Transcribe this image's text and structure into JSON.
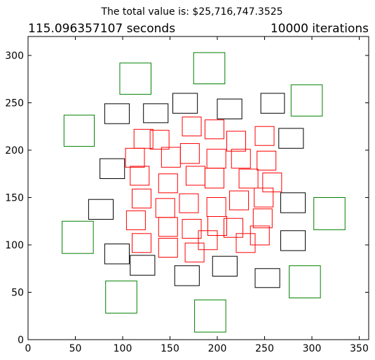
{
  "chart_data": {
    "type": "scatter",
    "title": "The total value is: $25,716,747.3525",
    "left_annotation": "115.096357107 seconds",
    "right_annotation": "10000 iterations",
    "xlabel": "",
    "ylabel": "",
    "xlim": [
      0,
      360
    ],
    "ylim": [
      0,
      320
    ],
    "x_ticks": [
      0,
      50,
      100,
      150,
      200,
      250,
      300,
      350
    ],
    "y_ticks": [
      0,
      50,
      100,
      150,
      200,
      250,
      300
    ],
    "grid": false,
    "legend": "none",
    "colors": {
      "green": "#008000",
      "black": "#000000",
      "red": "#ff0000"
    },
    "series": [
      {
        "color": "green",
        "rects": [
          {
            "x": 97,
            "y": 259,
            "w": 33,
            "h": 33
          },
          {
            "x": 175,
            "y": 270,
            "w": 33,
            "h": 33
          },
          {
            "x": 278,
            "y": 236,
            "w": 33,
            "h": 33
          },
          {
            "x": 38,
            "y": 204,
            "w": 32,
            "h": 33
          },
          {
            "x": 302,
            "y": 116,
            "w": 33,
            "h": 34
          },
          {
            "x": 36,
            "y": 91,
            "w": 33,
            "h": 34
          },
          {
            "x": 82,
            "y": 28,
            "w": 33,
            "h": 34
          },
          {
            "x": 276,
            "y": 44,
            "w": 33,
            "h": 34
          },
          {
            "x": 176,
            "y": 8,
            "w": 33,
            "h": 34
          }
        ]
      },
      {
        "color": "black",
        "rects": [
          {
            "x": 81,
            "y": 228,
            "w": 26,
            "h": 21
          },
          {
            "x": 122,
            "y": 229,
            "w": 26,
            "h": 20
          },
          {
            "x": 153,
            "y": 239,
            "w": 26,
            "h": 21
          },
          {
            "x": 200,
            "y": 233,
            "w": 26,
            "h": 21
          },
          {
            "x": 246,
            "y": 239,
            "w": 25,
            "h": 21
          },
          {
            "x": 265,
            "y": 202,
            "w": 26,
            "h": 21
          },
          {
            "x": 76,
            "y": 170,
            "w": 26,
            "h": 21
          },
          {
            "x": 64,
            "y": 127,
            "w": 26,
            "h": 21
          },
          {
            "x": 267,
            "y": 134,
            "w": 26,
            "h": 21
          },
          {
            "x": 81,
            "y": 80,
            "w": 26,
            "h": 21
          },
          {
            "x": 267,
            "y": 94,
            "w": 26,
            "h": 21
          },
          {
            "x": 108,
            "y": 68,
            "w": 26,
            "h": 21
          },
          {
            "x": 155,
            "y": 57,
            "w": 26,
            "h": 21
          },
          {
            "x": 195,
            "y": 67,
            "w": 26,
            "h": 21
          },
          {
            "x": 240,
            "y": 55,
            "w": 26,
            "h": 20
          }
        ]
      },
      {
        "color": "red",
        "rects": [
          {
            "x": 163,
            "y": 215,
            "w": 20,
            "h": 20
          },
          {
            "x": 187,
            "y": 212,
            "w": 20,
            "h": 20
          },
          {
            "x": 112,
            "y": 202,
            "w": 20,
            "h": 20
          },
          {
            "x": 129,
            "y": 201,
            "w": 20,
            "h": 20
          },
          {
            "x": 210,
            "y": 199,
            "w": 20,
            "h": 21
          },
          {
            "x": 240,
            "y": 205,
            "w": 20,
            "h": 20
          },
          {
            "x": 103,
            "y": 182,
            "w": 20,
            "h": 20
          },
          {
            "x": 141,
            "y": 182,
            "w": 20,
            "h": 21
          },
          {
            "x": 161,
            "y": 186,
            "w": 20,
            "h": 21
          },
          {
            "x": 189,
            "y": 181,
            "w": 20,
            "h": 20
          },
          {
            "x": 215,
            "y": 181,
            "w": 20,
            "h": 20
          },
          {
            "x": 242,
            "y": 179,
            "w": 20,
            "h": 20
          },
          {
            "x": 108,
            "y": 163,
            "w": 20,
            "h": 20
          },
          {
            "x": 167,
            "y": 163,
            "w": 20,
            "h": 20
          },
          {
            "x": 187,
            "y": 160,
            "w": 20,
            "h": 21
          },
          {
            "x": 223,
            "y": 160,
            "w": 20,
            "h": 20
          },
          {
            "x": 138,
            "y": 155,
            "w": 20,
            "h": 20
          },
          {
            "x": 248,
            "y": 156,
            "w": 20,
            "h": 20
          },
          {
            "x": 110,
            "y": 139,
            "w": 20,
            "h": 20
          },
          {
            "x": 213,
            "y": 137,
            "w": 20,
            "h": 20
          },
          {
            "x": 239,
            "y": 140,
            "w": 20,
            "h": 20
          },
          {
            "x": 160,
            "y": 134,
            "w": 20,
            "h": 20
          },
          {
            "x": 135,
            "y": 129,
            "w": 20,
            "h": 20
          },
          {
            "x": 189,
            "y": 130,
            "w": 20,
            "h": 20
          },
          {
            "x": 104,
            "y": 116,
            "w": 20,
            "h": 20
          },
          {
            "x": 238,
            "y": 118,
            "w": 20,
            "h": 20
          },
          {
            "x": 138,
            "y": 109,
            "w": 20,
            "h": 20
          },
          {
            "x": 163,
            "y": 107,
            "w": 20,
            "h": 20
          },
          {
            "x": 190,
            "y": 110,
            "w": 20,
            "h": 20
          },
          {
            "x": 207,
            "y": 108,
            "w": 20,
            "h": 20
          },
          {
            "x": 235,
            "y": 100,
            "w": 20,
            "h": 20
          },
          {
            "x": 110,
            "y": 92,
            "w": 20,
            "h": 20
          },
          {
            "x": 180,
            "y": 95,
            "w": 20,
            "h": 20
          },
          {
            "x": 220,
            "y": 92,
            "w": 20,
            "h": 20
          },
          {
            "x": 138,
            "y": 87,
            "w": 20,
            "h": 20
          },
          {
            "x": 166,
            "y": 82,
            "w": 20,
            "h": 20
          }
        ]
      }
    ]
  }
}
